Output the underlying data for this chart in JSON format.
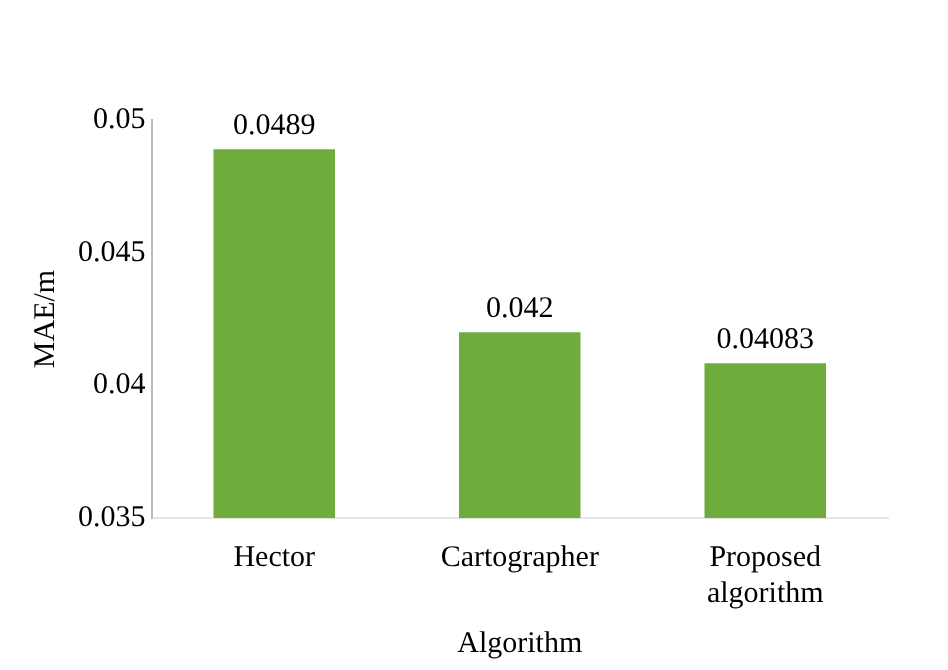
{
  "chart_data": {
    "type": "bar",
    "xlabel": "Algorithm",
    "ylabel": "MAE/m",
    "categories": [
      "Hector",
      "Cartographer",
      "Proposed algorithm"
    ],
    "values": [
      0.0489,
      0.042,
      0.04083
    ],
    "color": "#6fac3e",
    "ylim": [
      0.035,
      0.05
    ],
    "yticks": [
      0.035,
      0.04,
      0.045,
      0.05
    ],
    "grid": false,
    "data_labels": true
  }
}
